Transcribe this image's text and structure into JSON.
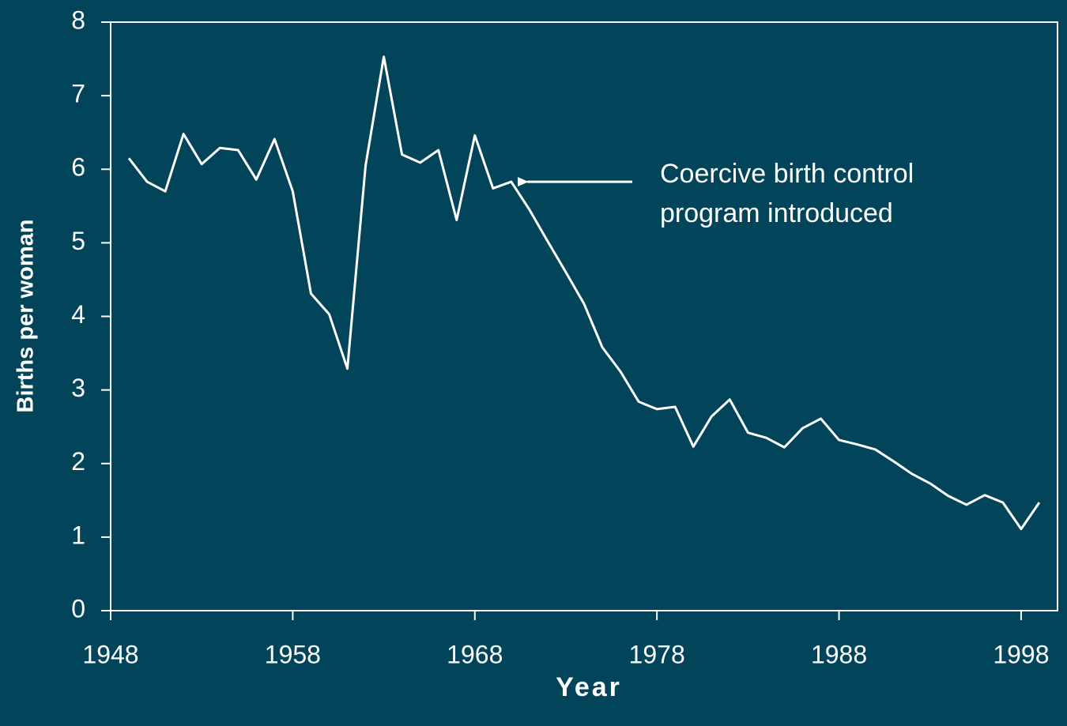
{
  "chart_data": {
    "type": "line",
    "x_label": "Year",
    "y_label": "Births per woman",
    "annotation": [
      "Coercive birth control",
      "program introduced"
    ],
    "annotation_x": 1970,
    "x": [
      1949,
      1950,
      1951,
      1952,
      1953,
      1954,
      1955,
      1956,
      1957,
      1958,
      1959,
      1960,
      1961,
      1962,
      1963,
      1964,
      1965,
      1966,
      1967,
      1968,
      1969,
      1970,
      1971,
      1972,
      1973,
      1974,
      1975,
      1976,
      1977,
      1978,
      1979,
      1980,
      1981,
      1982,
      1983,
      1984,
      1985,
      1986,
      1987,
      1988,
      1989,
      1990,
      1991,
      1992,
      1993,
      1994,
      1995,
      1996,
      1997,
      1998,
      1999
    ],
    "series": [
      {
        "color": "#ffffff",
        "values": [
          6.15,
          5.83,
          5.7,
          6.48,
          6.07,
          6.29,
          6.26,
          5.86,
          6.41,
          5.7,
          4.31,
          4.03,
          3.29,
          6.05,
          7.53,
          6.2,
          6.09,
          6.26,
          5.31,
          6.46,
          5.74,
          5.83,
          5.45,
          5.02,
          4.6,
          4.17,
          3.58,
          3.25,
          2.84,
          2.74,
          2.77,
          2.23,
          2.64,
          2.87,
          2.42,
          2.35,
          2.22,
          2.48,
          2.61,
          2.32,
          2.26,
          2.19,
          2.03,
          1.86,
          1.73,
          1.56,
          1.44,
          1.57,
          1.47,
          1.11,
          1.47
        ]
      }
    ],
    "xlim": [
      1948,
      2000
    ],
    "xticks": [
      1948,
      1958,
      1968,
      1978,
      1988,
      1998
    ],
    "ylim": [
      0,
      8
    ],
    "yticks": [
      0,
      1,
      2,
      3,
      4,
      5,
      6,
      7,
      8
    ],
    "grid": false
  }
}
